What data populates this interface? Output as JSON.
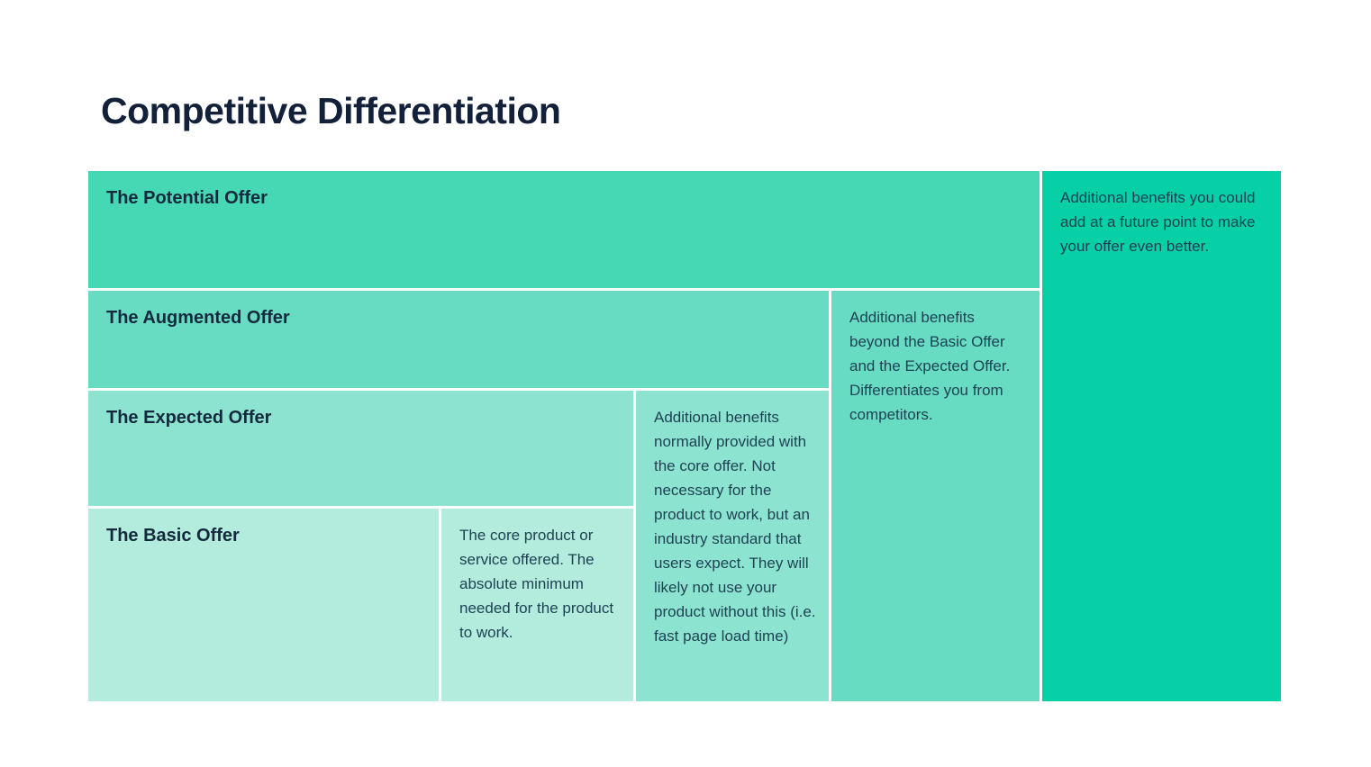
{
  "page": {
    "title": "Competitive Differentiation"
  },
  "colors": {
    "title_text": "#13203a",
    "heading_text": "#14293e",
    "body_text": "#1e4254",
    "background": "#ffffff"
  },
  "tiers": [
    {
      "id": "potential",
      "label": "The Potential Offer",
      "description": "Additional benefits you could add at a future point to make your offer even better.",
      "band_color": "#46d7b4",
      "desc_color": "#08d0a6"
    },
    {
      "id": "augmented",
      "label": "The Augmented Offer",
      "description": "Additional benefits beyond the Basic Offer and the Expected Offer. Differentiates you from competitors.",
      "band_color": "#67dcc3",
      "desc_color": "#67dcc3"
    },
    {
      "id": "expected",
      "label": "The Expected Offer",
      "description": "Additional benefits normally provided with the core offer. Not necessary for the product to work, but an industry standard that users expect. They will likely not use your product without this (i.e. fast page load time)",
      "band_color": "#8ce4d0",
      "desc_color": "#8ce4d0"
    },
    {
      "id": "basic",
      "label": "The Basic Offer",
      "description": "The core product or service offered. The absolute minimum needed for the product to work.",
      "band_color": "#b3ecdc",
      "desc_color": "#b3ecdc"
    }
  ]
}
